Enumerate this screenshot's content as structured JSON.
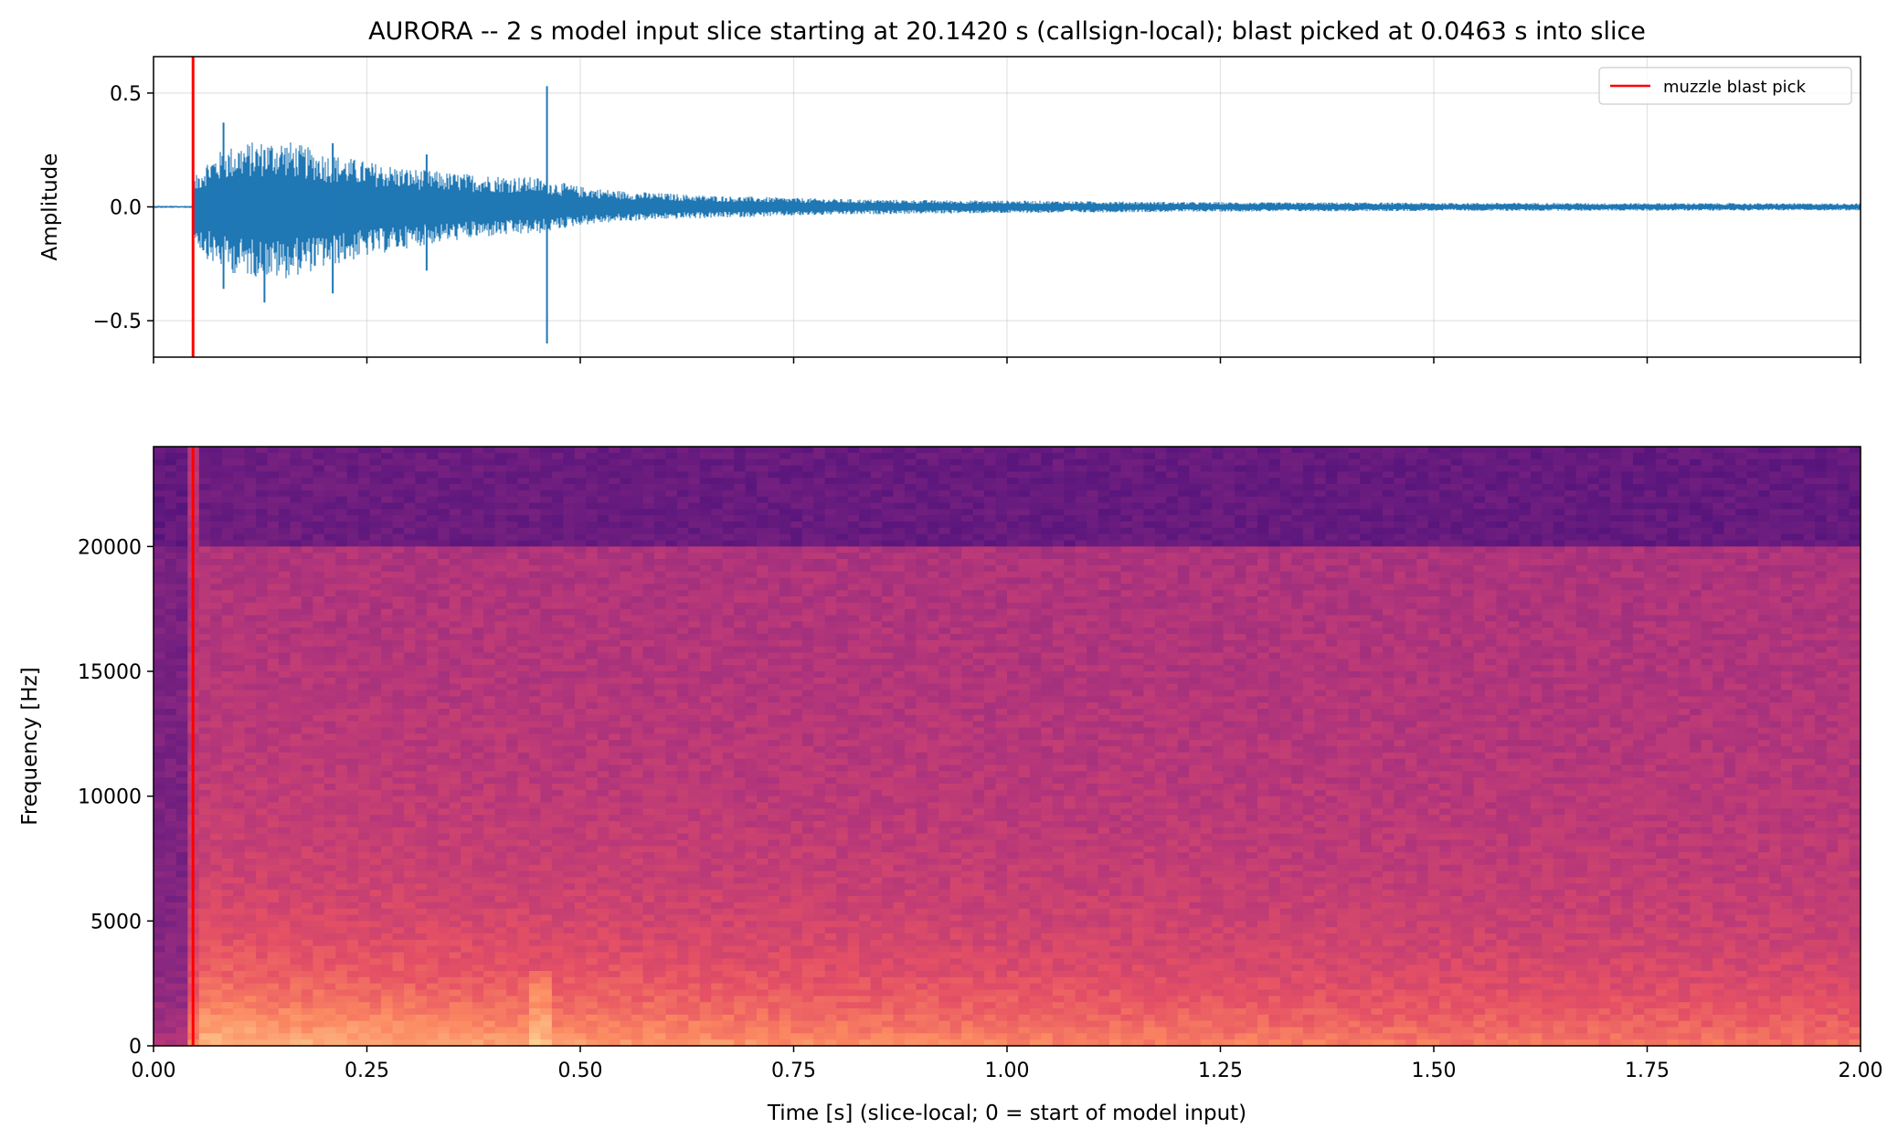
{
  "figure": {
    "title": "AURORA  --  2 s model input slice starting at 20.1420 s (callsign-local); blast picked at 0.0463 s into slice"
  },
  "chart_data": [
    {
      "id": "waveform",
      "type": "line",
      "title": "",
      "xlabel": "",
      "ylabel": "Amplitude",
      "xlim": [
        0,
        2
      ],
      "ylim": [
        -0.66,
        0.66
      ],
      "yticks": [
        0.5,
        0.0,
        -0.5
      ],
      "ytick_labels": [
        "0.5",
        "0.0",
        "−0.5"
      ],
      "xticks": [
        0,
        0.25,
        0.5,
        0.75,
        1.0,
        1.25,
        1.5,
        1.75,
        2.0
      ],
      "grid": true,
      "legend": {
        "placement": "top-right",
        "entries": [
          "muzzle blast pick"
        ]
      },
      "series": [
        {
          "kind": "waveform-envelope",
          "color": "#1f77b4",
          "t": [
            0.0,
            0.045,
            0.047,
            0.06,
            0.08,
            0.1,
            0.15,
            0.2,
            0.25,
            0.3,
            0.35,
            0.4,
            0.45,
            0.5,
            0.55,
            0.6,
            0.65,
            0.7,
            0.75,
            0.8,
            0.9,
            1.0,
            1.1,
            1.2,
            1.3,
            1.4,
            1.5,
            1.6,
            1.7,
            1.8,
            1.9,
            2.0
          ],
          "max": [
            0.005,
            0.005,
            0.12,
            0.2,
            0.25,
            0.28,
            0.3,
            0.24,
            0.2,
            0.17,
            0.15,
            0.14,
            0.13,
            0.09,
            0.07,
            0.06,
            0.05,
            0.045,
            0.04,
            0.035,
            0.03,
            0.028,
            0.025,
            0.022,
            0.02,
            0.02,
            0.018,
            0.018,
            0.017,
            0.017,
            0.016,
            0.016
          ],
          "min": [
            -0.005,
            -0.005,
            -0.14,
            -0.22,
            -0.28,
            -0.3,
            -0.32,
            -0.27,
            -0.22,
            -0.18,
            -0.15,
            -0.13,
            -0.12,
            -0.08,
            -0.065,
            -0.055,
            -0.05,
            -0.045,
            -0.04,
            -0.035,
            -0.03,
            -0.028,
            -0.025,
            -0.022,
            -0.02,
            -0.02,
            -0.018,
            -0.018,
            -0.017,
            -0.017,
            -0.016,
            -0.016
          ],
          "spikes": [
            {
              "t": 0.082,
              "max": 0.37,
              "min": -0.36
            },
            {
              "t": 0.13,
              "max": 0.25,
              "min": -0.42
            },
            {
              "t": 0.21,
              "max": 0.28,
              "min": -0.38
            },
            {
              "t": 0.32,
              "max": 0.23,
              "min": -0.28
            },
            {
              "t": 0.461,
              "max": 0.53,
              "min": -0.6
            }
          ]
        }
      ],
      "vlines": [
        {
          "x": 0.0463,
          "color": "#ff0000",
          "label": "muzzle blast pick"
        }
      ]
    },
    {
      "id": "spectrogram",
      "type": "heatmap",
      "title": "",
      "xlabel": "Time [s] (slice-local; 0 = start of model input)",
      "ylabel": "Frequency [Hz]",
      "xlim": [
        0,
        2
      ],
      "ylim": [
        0,
        24000
      ],
      "xticks": [
        0,
        0.25,
        0.5,
        0.75,
        1.0,
        1.25,
        1.5,
        1.75,
        2.0
      ],
      "xtick_labels": [
        "0.00",
        "0.25",
        "0.50",
        "0.75",
        "1.00",
        "1.25",
        "1.50",
        "1.75",
        "2.00"
      ],
      "yticks": [
        0,
        5000,
        10000,
        15000,
        20000
      ],
      "ytick_labels": [
        "0",
        "5000",
        "10000",
        "15000",
        "20000"
      ],
      "colormap": "magma",
      "notes": "energy onset at the blast pick, strongest below about 3000 Hz and fading with time; energy drops sharply above about 20000 Hz",
      "vlines": [
        {
          "x": 0.0463,
          "color": "#ff0000"
        }
      ]
    }
  ]
}
